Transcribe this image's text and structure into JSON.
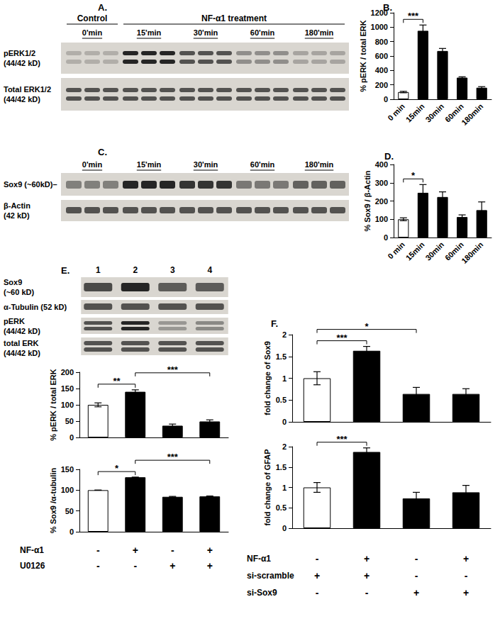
{
  "chart_data": [
    {
      "title": "B.",
      "type": "bar",
      "y_label": "% pERK / total ERK",
      "categories": [
        "0 min",
        "15min",
        "30min",
        "60min",
        "180min"
      ],
      "values": [
        100,
        950,
        670,
        300,
        160
      ],
      "errors": [
        10,
        80,
        35,
        12,
        15
      ],
      "colors": [
        "#ffffff",
        "#000000",
        "#000000",
        "#000000",
        "#000000"
      ],
      "ylim": [
        0,
        1200
      ],
      "yticks": [
        0,
        200,
        400,
        600,
        800,
        1000,
        1200
      ],
      "grid": false,
      "significance": [
        {
          "from": 0,
          "to": 1,
          "label": "***"
        }
      ]
    },
    {
      "title": "D.",
      "type": "bar",
      "y_label": "% Sox9 / β-Actin",
      "categories": [
        "0 min",
        "15min",
        "30min",
        "60min",
        "180min"
      ],
      "values": [
        100,
        245,
        222,
        112,
        150
      ],
      "errors": [
        8,
        45,
        28,
        12,
        45
      ],
      "colors": [
        "#ffffff",
        "#000000",
        "#000000",
        "#000000",
        "#000000"
      ],
      "ylim": [
        0,
        400
      ],
      "yticks": [
        0,
        100,
        200,
        300,
        400
      ],
      "grid": false,
      "significance": [
        {
          "from": 0,
          "to": 1,
          "label": "*"
        }
      ]
    },
    {
      "type": "bar",
      "y_label": "% pERK / total ERK",
      "categories": [
        null,
        null,
        null,
        null
      ],
      "values": [
        100,
        140,
        36,
        49
      ],
      "errors": [
        6,
        6,
        5,
        5
      ],
      "colors": [
        "#ffffff",
        "#000000",
        "#000000",
        "#000000"
      ],
      "ylim": [
        0,
        200
      ],
      "yticks": [
        0,
        50,
        100,
        150,
        200
      ],
      "grid": false,
      "tick_labels": "y",
      "significance": [
        {
          "from": 0,
          "to": 1,
          "label": "**"
        },
        {
          "from": 1,
          "to": 3,
          "label": "***"
        }
      ]
    },
    {
      "type": "bar",
      "y_label": "% Sox9 /α-tubulin",
      "categories": [
        null,
        null,
        null,
        null
      ],
      "values": [
        100,
        131,
        84,
        85
      ],
      "errors": [
        0,
        0,
        1,
        1
      ],
      "colors": [
        "#ffffff",
        "#000000",
        "#000000",
        "#000000"
      ],
      "ylim": [
        0,
        150
      ],
      "yticks": [
        0,
        50,
        100,
        150
      ],
      "grid": false,
      "tick_labels": "y",
      "significance": [
        {
          "from": 0,
          "to": 1,
          "label": "*"
        },
        {
          "from": 1,
          "to": 3,
          "label": "***"
        }
      ],
      "conditions": [
        {
          "label": "NF-α1",
          "signs": [
            "-",
            "+",
            "-",
            "+"
          ]
        },
        {
          "label": "U0126",
          "signs": [
            "-",
            "-",
            "+",
            "+"
          ]
        }
      ]
    },
    {
      "title": "F.",
      "type": "bar",
      "y_label": "fold change of Sox9",
      "categories": [
        null,
        null,
        null,
        null
      ],
      "values": [
        1.0,
        1.63,
        0.64,
        0.64
      ],
      "errors": [
        0.15,
        0.1,
        0.15,
        0.12
      ],
      "colors": [
        "#ffffff",
        "#000000",
        "#000000",
        "#000000"
      ],
      "ylim": [
        0,
        2
      ],
      "yticks": [
        0,
        0.5,
        1,
        1.5,
        2
      ],
      "grid": false,
      "tick_labels": "y",
      "significance": [
        {
          "from": 0,
          "to": 1,
          "label": "***"
        },
        {
          "from": 0,
          "to": 2,
          "label": "*"
        }
      ]
    },
    {
      "type": "bar",
      "y_label": "fold change of GFAP",
      "categories": [
        null,
        null,
        null,
        null
      ],
      "values": [
        1.0,
        1.87,
        0.73,
        0.88
      ],
      "errors": [
        0.12,
        0.1,
        0.15,
        0.17
      ],
      "colors": [
        "#ffffff",
        "#000000",
        "#000000",
        "#000000"
      ],
      "ylim": [
        0,
        2
      ],
      "yticks": [
        0,
        0.5,
        1,
        1.5,
        2
      ],
      "grid": false,
      "tick_labels": "y",
      "significance": [
        {
          "from": 0,
          "to": 1,
          "label": "***"
        }
      ],
      "conditions": [
        {
          "label": "NF-α1",
          "signs": [
            "-",
            "+",
            "-",
            "+"
          ]
        },
        {
          "label": "si-scramble",
          "signs": [
            "+",
            "+",
            "-",
            "-"
          ]
        },
        {
          "label": "si-Sox9",
          "signs": [
            "-",
            "-",
            "+",
            "+"
          ]
        }
      ]
    }
  ],
  "blots": [
    {
      "title": "A.",
      "headers": [
        {
          "label": "Control",
          "span": 1
        },
        {
          "label": "NF-α1 treatment",
          "span": 4
        }
      ],
      "groups": [
        "0'min",
        "15'min",
        "30'min",
        "60'min",
        "180'min"
      ],
      "rows": [
        {
          "label": "pERK1/2",
          "sub": "(44/42 kD)"
        },
        {
          "label": "Total ERK1/2",
          "sub": "(44/42 kD)"
        }
      ]
    },
    {
      "title": "C.",
      "groups": [
        "0'min",
        "15'min",
        "30'min",
        "60'min",
        "180'min"
      ],
      "rows": [
        {
          "label": "Sox9 (~60kD)–"
        },
        {
          "label": "β-Actin",
          "sub": "(42 kD)"
        }
      ]
    },
    {
      "title": "E.",
      "lanes": [
        "1",
        "2",
        "3",
        "4"
      ],
      "rows": [
        {
          "label": "Sox9",
          "sub": "(~60 kD)"
        },
        {
          "label": "α-Tubulin (52 kD)"
        },
        {
          "label": "pERK",
          "sub": "(44/42 kD)"
        },
        {
          "label": "total ERK",
          "sub": "(44/42 kD)"
        }
      ]
    }
  ]
}
